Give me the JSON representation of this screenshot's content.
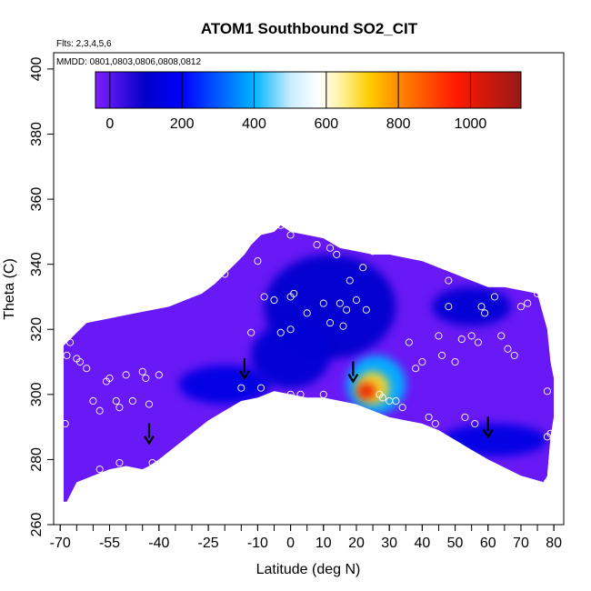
{
  "chart_data": {
    "type": "heatmap",
    "title": "ATOM1 Southbound SO2_CIT",
    "flights_label": "Flts: 2,3,4,5,6",
    "dates_label": "MMDD: 0801,0803,0806,0808,0812",
    "xlabel": "Latitude (deg N)",
    "ylabel": "Theta (C)",
    "xlim": [
      -72,
      83
    ],
    "ylim": [
      260,
      405
    ],
    "x_tick_labels": [
      "-70",
      "-55",
      "-40",
      "-25",
      "-10",
      "0",
      "10",
      "20",
      "30",
      "40",
      "50",
      "60",
      "70",
      "80"
    ],
    "x_tick_values": [
      -70,
      -55,
      -40,
      -25,
      -10,
      0,
      10,
      20,
      30,
      40,
      50,
      60,
      70,
      80
    ],
    "y_tick_values": [
      260,
      280,
      300,
      320,
      340,
      360,
      380,
      400
    ],
    "y_tick_labels": [
      "260",
      "280",
      "300",
      "320",
      "340",
      "360",
      "380",
      "400"
    ],
    "colorbar": {
      "min": -40,
      "max": 1140,
      "tick_values": [
        0,
        200,
        400,
        600,
        800,
        1000
      ],
      "tick_labels": [
        "0",
        "200",
        "400",
        "600",
        "800",
        "1000"
      ],
      "stops": [
        {
          "v": -40,
          "color": "#7f1fff"
        },
        {
          "v": 100,
          "color": "#0000c8"
        },
        {
          "v": 200,
          "color": "#0000ff"
        },
        {
          "v": 400,
          "color": "#00b4ff"
        },
        {
          "v": 500,
          "color": "#c8ecff"
        },
        {
          "v": 580,
          "color": "#ffffff"
        },
        {
          "v": 640,
          "color": "#fff2a0"
        },
        {
          "v": 720,
          "color": "#ffcc00"
        },
        {
          "v": 820,
          "color": "#ff7a00"
        },
        {
          "v": 960,
          "color": "#ff1a00"
        },
        {
          "v": 1140,
          "color": "#991818"
        }
      ]
    },
    "top_boundary": [
      [
        -69,
        315
      ],
      [
        -66,
        318
      ],
      [
        -62,
        322
      ],
      [
        -57,
        323
      ],
      [
        -52,
        324
      ],
      [
        -47,
        325
      ],
      [
        -42,
        326
      ],
      [
        -37,
        327
      ],
      [
        -32,
        329
      ],
      [
        -27,
        331
      ],
      [
        -23,
        334
      ],
      [
        -20,
        337
      ],
      [
        -17,
        340
      ],
      [
        -14,
        343
      ],
      [
        -12,
        346
      ],
      [
        -9,
        349
      ],
      [
        -5,
        350
      ],
      [
        -3,
        352
      ],
      [
        0,
        350
      ],
      [
        5,
        349
      ],
      [
        10,
        348
      ],
      [
        15,
        345
      ],
      [
        20,
        344
      ],
      [
        25,
        343
      ],
      [
        30,
        343
      ],
      [
        35,
        342
      ],
      [
        40,
        341
      ],
      [
        45,
        339
      ],
      [
        50,
        337
      ],
      [
        55,
        335
      ],
      [
        60,
        333
      ],
      [
        65,
        333
      ],
      [
        70,
        332
      ],
      [
        75,
        331
      ],
      [
        78,
        320
      ],
      [
        79,
        310
      ],
      [
        80,
        305
      ]
    ],
    "bottom_boundary": [
      [
        80,
        305
      ],
      [
        80,
        293
      ],
      [
        79,
        287
      ],
      [
        78,
        275
      ],
      [
        77,
        273
      ],
      [
        70,
        275
      ],
      [
        60,
        280
      ],
      [
        55,
        283
      ],
      [
        50,
        286
      ],
      [
        45,
        289
      ],
      [
        40,
        291
      ],
      [
        35,
        292
      ],
      [
        30,
        293
      ],
      [
        25,
        295
      ],
      [
        20,
        297
      ],
      [
        15,
        298
      ],
      [
        10,
        299
      ],
      [
        5,
        299
      ],
      [
        0,
        300
      ],
      [
        -5,
        301
      ],
      [
        -10,
        299
      ],
      [
        -15,
        298
      ],
      [
        -20,
        295
      ],
      [
        -25,
        292
      ],
      [
        -30,
        288
      ],
      [
        -35,
        284
      ],
      [
        -40,
        280
      ],
      [
        -43,
        278
      ],
      [
        -45,
        277
      ],
      [
        -50,
        278
      ],
      [
        -55,
        277
      ],
      [
        -60,
        275
      ],
      [
        -65,
        273
      ],
      [
        -68,
        267
      ],
      [
        -69,
        267
      ]
    ],
    "blobs": [
      {
        "x": 12,
        "y": 327,
        "value": 110,
        "rx": 20,
        "ry": 16
      },
      {
        "x": -20,
        "y": 303,
        "value": 150,
        "rx": 14,
        "ry": 6
      },
      {
        "x": 0,
        "y": 312,
        "value": 120,
        "rx": 12,
        "ry": 10
      },
      {
        "x": 55,
        "y": 327,
        "value": 120,
        "rx": 12,
        "ry": 6
      },
      {
        "x": 62,
        "y": 286,
        "value": 150,
        "rx": 16,
        "ry": 5
      },
      {
        "x": 26,
        "y": 303,
        "value": 400,
        "rx": 9,
        "ry": 9
      },
      {
        "x": 25,
        "y": 302,
        "value": 700,
        "rx": 5,
        "ry": 5
      },
      {
        "x": 23,
        "y": 301,
        "value": 990,
        "rx": 3,
        "ry": 2.5
      }
    ],
    "points": [
      [
        -68.5,
        291
      ],
      [
        -68,
        312
      ],
      [
        -67,
        316
      ],
      [
        -65,
        311
      ],
      [
        -64,
        310
      ],
      [
        -62,
        308
      ],
      [
        -60,
        298
      ],
      [
        -58,
        295
      ],
      [
        -56,
        304
      ],
      [
        -55,
        305
      ],
      [
        -53,
        298
      ],
      [
        -52,
        296
      ],
      [
        -50,
        306
      ],
      [
        -48,
        298
      ],
      [
        -45,
        307
      ],
      [
        -44,
        305
      ],
      [
        -43,
        297
      ],
      [
        -42,
        279
      ],
      [
        -52,
        279
      ],
      [
        -58,
        277
      ],
      [
        -40,
        306
      ],
      [
        -15,
        302
      ],
      [
        -12,
        319
      ],
      [
        -9,
        302
      ],
      [
        -8,
        330
      ],
      [
        -5,
        329
      ],
      [
        -3,
        319
      ],
      [
        0,
        330
      ],
      [
        0,
        320
      ],
      [
        0,
        300
      ],
      [
        0,
        299
      ],
      [
        1,
        331
      ],
      [
        3,
        300
      ],
      [
        5,
        325
      ],
      [
        8,
        346
      ],
      [
        10,
        328
      ],
      [
        10,
        300
      ],
      [
        12,
        322
      ],
      [
        12,
        345
      ],
      [
        14,
        343
      ],
      [
        15,
        328
      ],
      [
        16,
        321
      ],
      [
        17,
        326
      ],
      [
        18,
        335
      ],
      [
        20,
        329
      ],
      [
        20,
        346
      ],
      [
        22,
        339
      ],
      [
        23,
        326
      ],
      [
        25,
        344
      ],
      [
        27,
        300
      ],
      [
        28,
        299
      ],
      [
        30,
        298
      ],
      [
        32,
        298
      ],
      [
        34,
        296
      ],
      [
        36,
        316
      ],
      [
        38,
        308
      ],
      [
        40,
        310
      ],
      [
        42,
        293
      ],
      [
        44,
        291
      ],
      [
        45,
        318
      ],
      [
        46,
        312
      ],
      [
        48,
        327
      ],
      [
        48,
        335
      ],
      [
        50,
        310
      ],
      [
        52,
        317
      ],
      [
        53,
        293
      ],
      [
        55,
        318
      ],
      [
        56,
        291
      ],
      [
        57,
        316
      ],
      [
        58,
        327
      ],
      [
        59,
        325
      ],
      [
        62,
        330
      ],
      [
        64,
        318
      ],
      [
        66,
        314
      ],
      [
        68,
        312
      ],
      [
        70,
        327
      ],
      [
        72,
        328
      ],
      [
        75,
        331
      ],
      [
        78,
        301
      ],
      [
        78,
        287
      ],
      [
        79,
        288
      ],
      [
        78,
        273
      ],
      [
        -3,
        352
      ],
      [
        0,
        349
      ],
      [
        -10,
        341
      ],
      [
        -20,
        337
      ]
    ],
    "arrows": [
      [
        -43,
        285
      ],
      [
        -14,
        305
      ],
      [
        19,
        304
      ],
      [
        60,
        287
      ]
    ]
  }
}
